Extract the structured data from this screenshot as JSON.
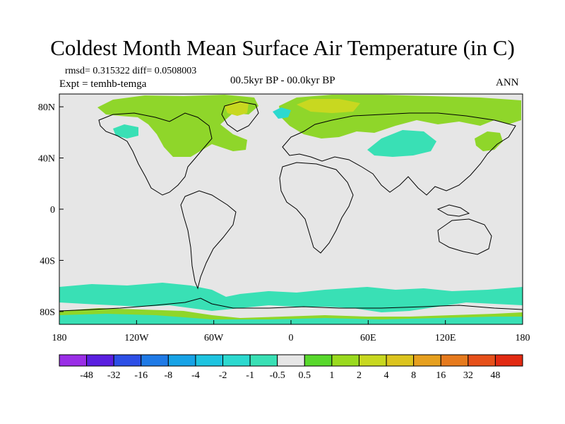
{
  "title": "Coldest Month Mean Surface Air Temperature (in C)",
  "stats_line": "rmsd= 0.315322 diff= 0.0508003",
  "experiment": "Expt = temhb-temga",
  "period": "00.5kyr BP - 00.0kyr BP",
  "season": "ANN",
  "map": {
    "projection": "cylindrical equidistant",
    "lon_range": [
      -180,
      180
    ],
    "lat_range": [
      -90,
      90
    ],
    "lon_ticks": [
      {
        "value": -180,
        "label": "180"
      },
      {
        "value": -120,
        "label": "120W"
      },
      {
        "value": -60,
        "label": "60W"
      },
      {
        "value": 0,
        "label": "0"
      },
      {
        "value": 60,
        "label": "60E"
      },
      {
        "value": 120,
        "label": "120E"
      },
      {
        "value": 180,
        "label": "180"
      }
    ],
    "lat_ticks": [
      {
        "value": 80,
        "label": "80N"
      },
      {
        "value": 40,
        "label": "40N"
      },
      {
        "value": 0,
        "label": "0"
      },
      {
        "value": -40,
        "label": "40S"
      },
      {
        "value": -80,
        "label": "80S"
      }
    ],
    "background_color": "#e6e6e6",
    "coastline_color": "#000000"
  },
  "colorbar": {
    "labels": [
      "-48",
      "-32",
      "-16",
      "-8",
      "-4",
      "-2",
      "-1",
      "-0.5",
      "0.5",
      "1",
      "2",
      "4",
      "8",
      "16",
      "32",
      "48"
    ],
    "colors": [
      "#9a2ee6",
      "#5a1fe0",
      "#2d4fe6",
      "#1f7ae6",
      "#17a3e6",
      "#1ec4e0",
      "#2cd9cf",
      "#39e0b5",
      "#e6e6e6",
      "#58d82c",
      "#9ada1e",
      "#c8d820",
      "#dcc41e",
      "#e6a01f",
      "#e67a1d",
      "#e6501a",
      "#e22a12"
    ]
  }
}
